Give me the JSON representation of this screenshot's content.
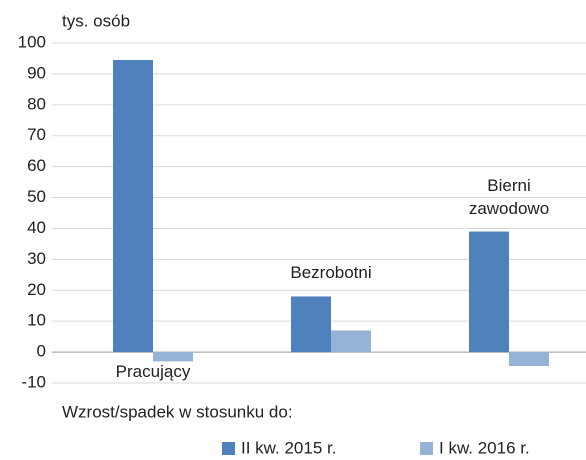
{
  "chart_data": {
    "type": "bar",
    "y_label": "tys. osób",
    "categories": [
      "Pracujący",
      "Bezrobotni",
      "Bierni zawodowo"
    ],
    "series": [
      {
        "name": "II kw. 2015 r.",
        "color": "#4f81bd",
        "values": [
          94.5,
          18,
          39
        ]
      },
      {
        "name": "I kw. 2016 r.",
        "color": "#95b3d7",
        "values": [
          -3,
          7,
          -4.5
        ]
      }
    ],
    "ylim": [
      -10,
      100
    ],
    "yticks": [
      -10,
      0,
      10,
      20,
      30,
      40,
      50,
      60,
      70,
      80,
      90,
      100
    ],
    "grid": true,
    "legend_title": "Wzrost/spadek w stosunku do:",
    "legend": "bottom"
  }
}
